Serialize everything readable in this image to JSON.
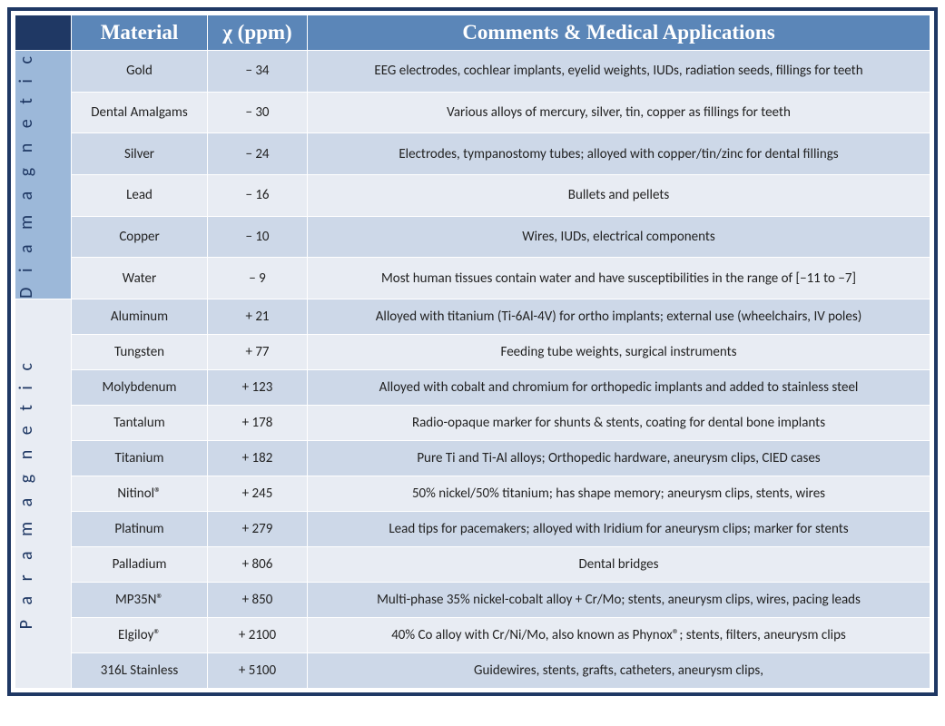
{
  "headers": {
    "material": "Material",
    "chi": "χ (ppm)",
    "comments": "Comments & Medical Applications"
  },
  "groups": [
    {
      "label": "D i a m a g n e t i c",
      "bgClass": "bg-dia",
      "rows": [
        {
          "material": "Gold",
          "chi": "− 34",
          "comments": "EEG electrodes, cochlear implants, eyelid weights, IUDs, radiation seeds, fillings for teeth"
        },
        {
          "material": "Dental Amalgams",
          "chi": "− 30",
          "comments": "Various alloys of mercury, silver, tin, copper as fillings for teeth"
        },
        {
          "material": "Silver",
          "chi": "− 24",
          "comments": "Electrodes, tympanostomy tubes; alloyed with copper/tin/zinc for dental fillings"
        },
        {
          "material": "Lead",
          "chi": "− 16",
          "comments": "Bullets and pellets"
        },
        {
          "material": "Copper",
          "chi": "− 10",
          "comments": "Wires, IUDs, electrical components"
        },
        {
          "material": "Water",
          "chi": "− 9",
          "comments": "Most human tissues contain water and have susceptibilities in the range of [−11 to −7]"
        }
      ]
    },
    {
      "label": "P a r a m a g n e t i c",
      "bgClass": "bg-para",
      "rows": [
        {
          "material": "Aluminum",
          "chi": "+ 21",
          "comments": "Alloyed with titanium (Ti-6Al-4V) for ortho implants; external use (wheelchairs, IV poles)"
        },
        {
          "material": "Tungsten",
          "chi": "+ 77",
          "comments": "Feeding tube weights, surgical instruments"
        },
        {
          "material": "Molybdenum",
          "chi": "+ 123",
          "comments": "Alloyed with cobalt and chromium for orthopedic implants and added to stainless steel"
        },
        {
          "material": "Tantalum",
          "chi": "+ 178",
          "comments": "Radio-opaque marker for shunts & stents, coating for dental bone implants"
        },
        {
          "material": "Titanium",
          "chi": "+ 182",
          "comments": "Pure Ti and Ti-Al alloys; Orthopedic hardware, aneurysm clips, CIED cases"
        },
        {
          "material": "Nitinol®",
          "chi": "+ 245",
          "comments": "50% nickel/50% titanium; has shape memory; aneurysm clips, stents, wires"
        },
        {
          "material": "Platinum",
          "chi": "+ 279",
          "comments": "Lead tips for pacemakers; alloyed with Iridium for aneurysm clips; marker for stents"
        },
        {
          "material": "Palladium",
          "chi": "+ 806",
          "comments": "Dental bridges"
        },
        {
          "material": "MP35N®",
          "chi": "+ 850",
          "comments": "Multi-phase 35% nickel-cobalt alloy + Cr/Mo; stents, aneurysm clips, wires, pacing leads"
        },
        {
          "material": "Elgiloy®",
          "chi": "+ 2100",
          "comments": "40% Co alloy with Cr/Ni/Mo, also known as Phynox®; stents, filters, aneurysm clips"
        },
        {
          "material": "316L Stainless",
          "chi": "+ 5100",
          "comments": "Guidewires, stents, grafts, catheters, aneurysm clips,"
        }
      ]
    }
  ]
}
